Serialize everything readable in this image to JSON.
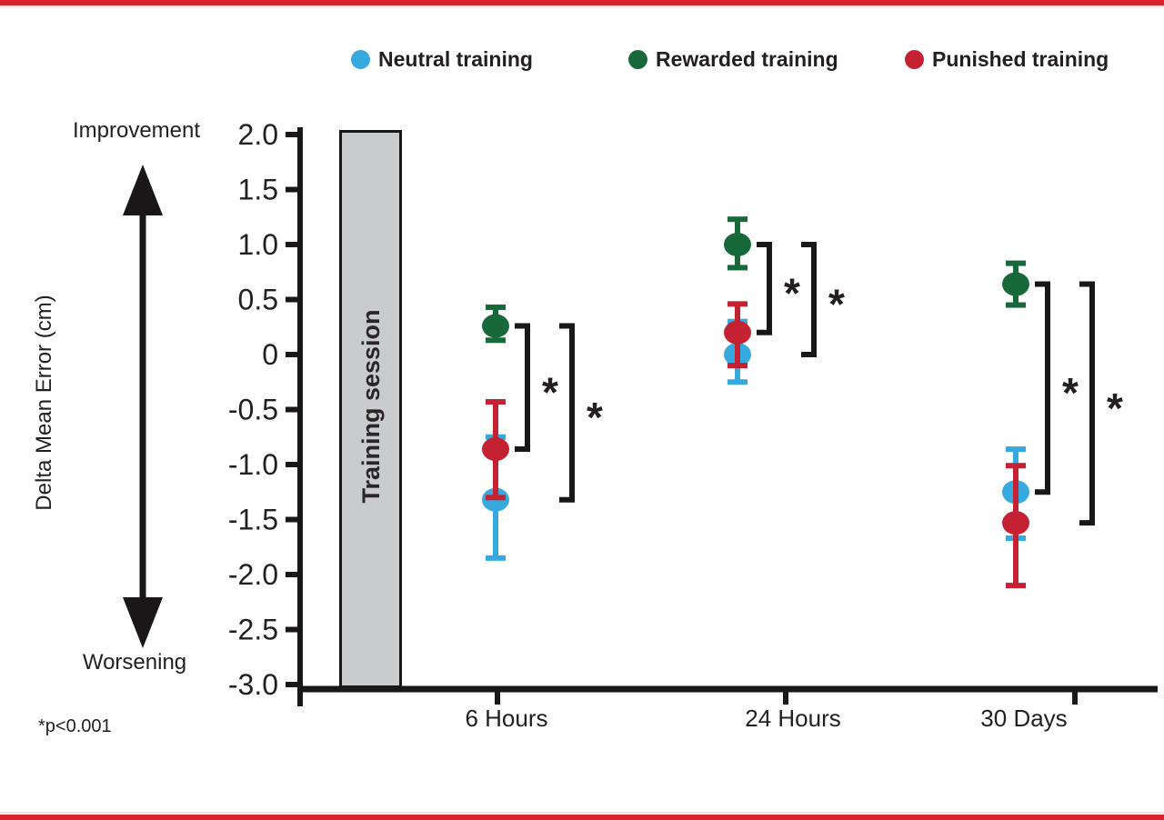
{
  "figure": {
    "accent_color": "#D9222B",
    "text_color": "#231F20",
    "background": "#ffffff"
  },
  "legend": {
    "position": "top",
    "items": [
      {
        "label": "Neutral training",
        "color": "#36A9DF",
        "icon": "circle"
      },
      {
        "label": "Rewarded training",
        "color": "#17693A",
        "icon": "circle"
      },
      {
        "label": "Punished training",
        "color": "#C42132",
        "icon": "circle"
      }
    ]
  },
  "chart_data": {
    "type": "scatter",
    "title": "",
    "xlabel": "",
    "ylabel": "Delta Mean Error (cm)",
    "ylim": [
      -3.0,
      2.0
    ],
    "yticks": [
      2.0,
      1.5,
      1.0,
      0.5,
      0,
      -0.5,
      -1.0,
      -1.5,
      -2.0,
      -2.5,
      -3.0
    ],
    "ytick_labels": [
      "2.0",
      "1.5",
      "1.0",
      "0.5",
      "0",
      "-0.5",
      "-1.0",
      "-1.5",
      "-2.0",
      "-2.5",
      "-3.0"
    ],
    "grid": false,
    "categories": [
      "6 Hours",
      "24 Hours",
      "30 Days"
    ],
    "direction_labels": {
      "top": "Improvement",
      "bottom": "Worsening"
    },
    "training_bar": {
      "label": "Training session",
      "fill": "#C9CBCD",
      "border": "#1A1718"
    },
    "series": [
      {
        "name": "Neutral training",
        "color": "#36A9DF",
        "values": [
          -1.32,
          0.0,
          -1.25
        ],
        "err_high": [
          -0.75,
          0.3,
          -0.86
        ],
        "err_low": [
          -1.85,
          -0.25,
          -1.67
        ]
      },
      {
        "name": "Rewarded training",
        "color": "#17693A",
        "values": [
          0.26,
          1.0,
          0.64
        ],
        "err_high": [
          0.43,
          1.23,
          0.83
        ],
        "err_low": [
          0.13,
          0.79,
          0.45
        ]
      },
      {
        "name": "Punished training",
        "color": "#C42132",
        "values": [
          -0.86,
          0.2,
          -1.53
        ],
        "err_high": [
          -0.43,
          0.46,
          -1.01
        ],
        "err_low": [
          -1.3,
          -0.1,
          -2.1
        ]
      }
    ],
    "significance": {
      "marker": "*",
      "note": "*p<0.001",
      "brackets": [
        {
          "category": 0,
          "between": [
            "Rewarded training",
            "Punished training"
          ]
        },
        {
          "category": 0,
          "between": [
            "Rewarded training",
            "Neutral training"
          ]
        },
        {
          "category": 1,
          "between": [
            "Rewarded training",
            "Punished training"
          ]
        },
        {
          "category": 1,
          "between": [
            "Rewarded training",
            "Neutral training"
          ]
        },
        {
          "category": 2,
          "between": [
            "Rewarded training",
            "Neutral training"
          ]
        },
        {
          "category": 2,
          "between": [
            "Rewarded training",
            "Punished training"
          ]
        }
      ]
    }
  }
}
